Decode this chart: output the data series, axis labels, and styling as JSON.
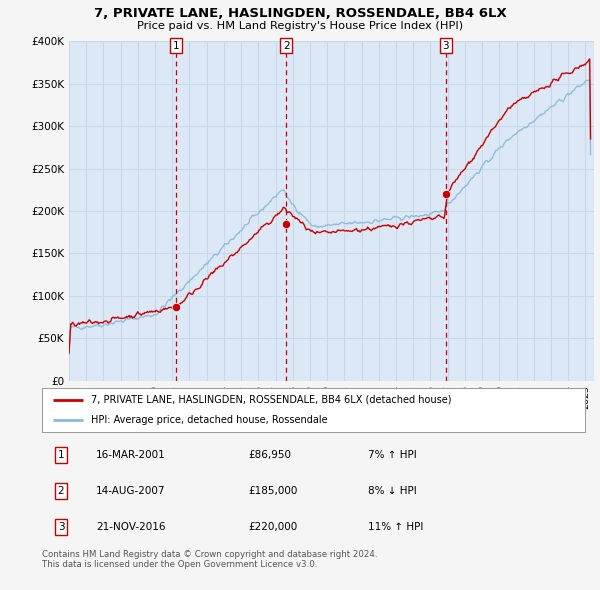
{
  "title": "7, PRIVATE LANE, HASLINGDEN, ROSSENDALE, BB4 6LX",
  "subtitle": "Price paid vs. HM Land Registry's House Price Index (HPI)",
  "fig_bg_color": "#f5f5f5",
  "plot_bg_color": "#dce8f5",
  "grid_color": "#c8d8e8",
  "red_line_color": "#cc0000",
  "blue_line_color": "#88bbdd",
  "ylim": [
    0,
    400000
  ],
  "yticks": [
    0,
    50000,
    100000,
    150000,
    200000,
    250000,
    300000,
    350000,
    400000
  ],
  "ytick_labels": [
    "£0",
    "£50K",
    "£100K",
    "£150K",
    "£200K",
    "£250K",
    "£300K",
    "£350K",
    "£400K"
  ],
  "xmin": 1995.0,
  "xmax": 2025.5,
  "xticks": [
    1995,
    1996,
    1997,
    1998,
    1999,
    2000,
    2001,
    2002,
    2003,
    2004,
    2005,
    2006,
    2007,
    2008,
    2009,
    2010,
    2011,
    2012,
    2013,
    2014,
    2015,
    2016,
    2017,
    2018,
    2019,
    2020,
    2021,
    2022,
    2023,
    2024,
    2025
  ],
  "sale_dates": [
    2001.21,
    2007.62,
    2016.9
  ],
  "sale_prices": [
    86950,
    185000,
    220000
  ],
  "marker_labels": [
    "1",
    "2",
    "3"
  ],
  "vline_color": "#cc0000",
  "marker_color": "#cc0000",
  "legend_entries": [
    "7, PRIVATE LANE, HASLINGDEN, ROSSENDALE, BB4 6LX (detached house)",
    "HPI: Average price, detached house, Rossendale"
  ],
  "table_rows": [
    {
      "num": "1",
      "date": "16-MAR-2001",
      "price": "£86,950",
      "change": "7% ↑ HPI"
    },
    {
      "num": "2",
      "date": "14-AUG-2007",
      "price": "£185,000",
      "change": "8% ↓ HPI"
    },
    {
      "num": "3",
      "date": "21-NOV-2016",
      "price": "£220,000",
      "change": "11% ↑ HPI"
    }
  ],
  "footer": "Contains HM Land Registry data © Crown copyright and database right 2024.\nThis data is licensed under the Open Government Licence v3.0."
}
